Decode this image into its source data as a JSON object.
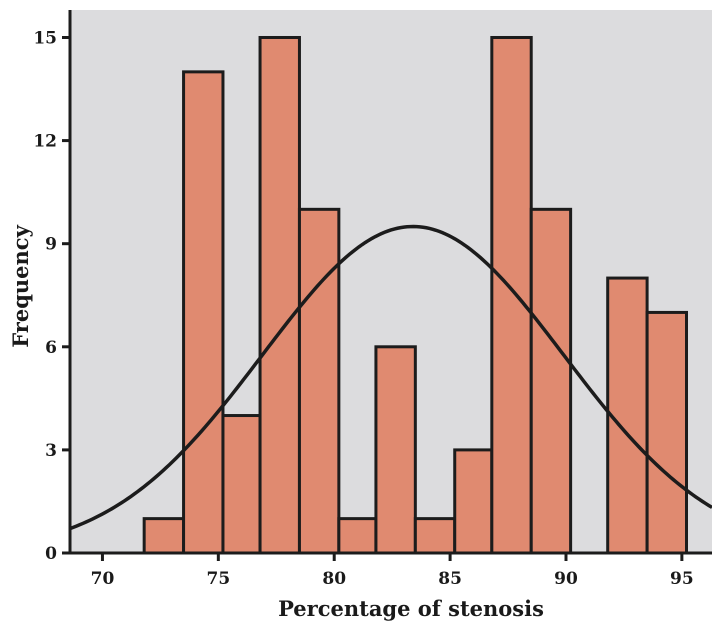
{
  "chart_data": {
    "type": "bar",
    "subtype": "histogram",
    "xlabel": "Percentage of stenosis",
    "ylabel": "Frequency",
    "xlim": [
      68.6,
      96.3
    ],
    "ylim": [
      0,
      15.8
    ],
    "x_ticks": [
      "70",
      "75",
      "80",
      "85",
      "90",
      "95"
    ],
    "y_ticks": [
      "0",
      "3",
      "6",
      "9",
      "12",
      "15"
    ],
    "bin_width": 1.67,
    "bins": [
      {
        "start": 71.8,
        "end": 73.5,
        "count": 1
      },
      {
        "start": 73.5,
        "end": 75.2,
        "count": 14
      },
      {
        "start": 75.2,
        "end": 76.8,
        "count": 4
      },
      {
        "start": 76.8,
        "end": 78.5,
        "count": 15
      },
      {
        "start": 78.5,
        "end": 80.2,
        "count": 10
      },
      {
        "start": 80.2,
        "end": 81.8,
        "count": 1
      },
      {
        "start": 81.8,
        "end": 83.5,
        "count": 6
      },
      {
        "start": 83.5,
        "end": 85.2,
        "count": 1
      },
      {
        "start": 85.2,
        "end": 86.8,
        "count": 3
      },
      {
        "start": 86.8,
        "end": 88.5,
        "count": 15
      },
      {
        "start": 88.5,
        "end": 90.2,
        "count": 10
      },
      {
        "start": 90.2,
        "end": 91.8,
        "count": 0
      },
      {
        "start": 91.8,
        "end": 93.5,
        "count": 8
      },
      {
        "start": 93.5,
        "end": 95.2,
        "count": 7
      }
    ],
    "normal_curve": {
      "mean": 83.4,
      "sd": 6.5,
      "peak": 9.5
    },
    "grid": false,
    "legend": "none",
    "colors": {
      "bar": "#e08a70",
      "plot_bg": "#dcdcde",
      "stroke": "#1c1c1c"
    }
  }
}
